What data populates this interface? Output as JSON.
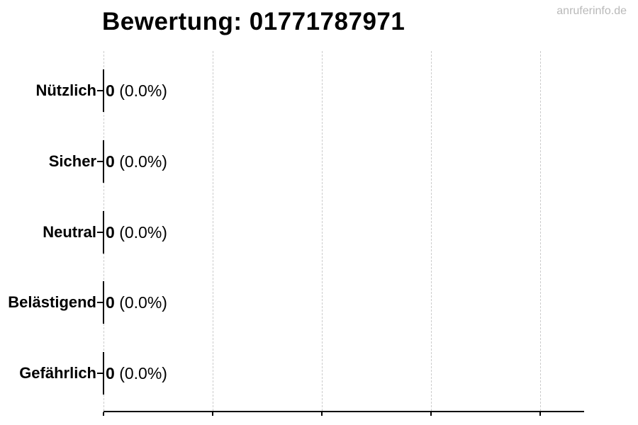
{
  "header": {
    "title": "Bewertung: 01771787971",
    "watermark": "anruferinfo.de"
  },
  "colors": {
    "text": "#000000",
    "axis": "#000000",
    "grid": "#cccccc",
    "bar_edge": "#000000",
    "watermark": "#b9b9b9",
    "background": "#ffffff"
  },
  "chart_data": {
    "type": "bar",
    "orientation": "horizontal",
    "title": "Bewertung: 01771787971",
    "categories": [
      "Nützlich",
      "Sicher",
      "Neutral",
      "Belästigend",
      "Gefährlich"
    ],
    "values": [
      0,
      0,
      0,
      0,
      0
    ],
    "counts": [
      "0",
      "0",
      "0",
      "0",
      "0"
    ],
    "percent_labels": [
      "(0.0%)",
      "(0.0%)",
      "(0.0%)",
      "(0.0%)",
      "(0.0%)"
    ],
    "value_label_format": "count (percent)",
    "xlabel": "",
    "ylabel": "",
    "xlim": [
      0,
      1
    ],
    "x_tick_labels": [],
    "grid": "vertical-dashed",
    "legend": "none"
  }
}
